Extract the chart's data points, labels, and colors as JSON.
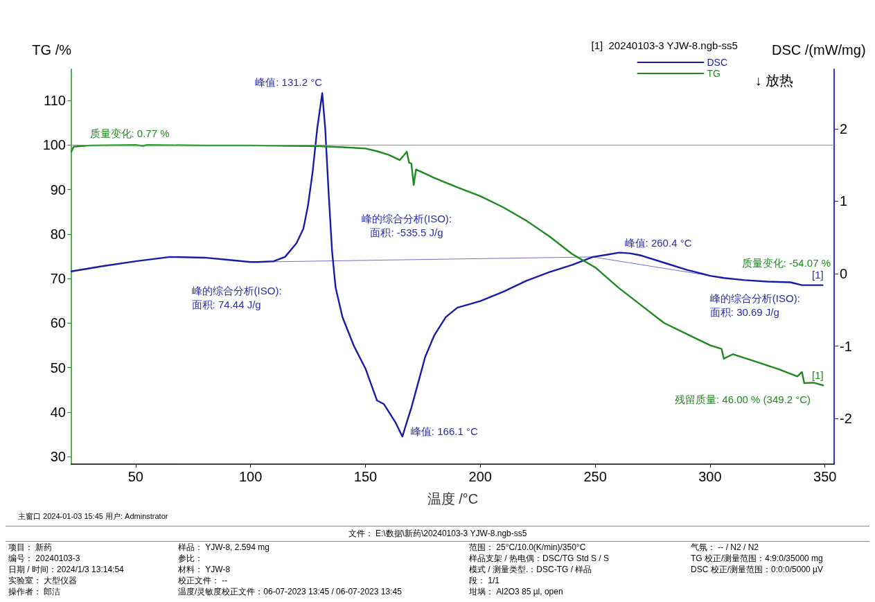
{
  "chart_data": {
    "type": "line",
    "xlabel": "温度 /°C",
    "ylabel": "TG /%",
    "y2label": "DSC /(mW/mg)",
    "legend_title": "[1]  20240103-3 YJW-8.ngb-ss5",
    "legend": "top right",
    "grid": false,
    "marker": "none",
    "line_style": "solid",
    "xlim": [
      22,
      354
    ],
    "xticks": [
      50,
      100,
      150,
      200,
      250,
      300,
      350
    ],
    "ylim": [
      28.3,
      117
    ],
    "yticks": [
      30,
      40,
      50,
      60,
      70,
      80,
      90,
      100,
      110
    ],
    "y2lim": [
      -2.63,
      2.82
    ],
    "y2ticks": [
      -2,
      -1,
      0,
      1,
      2
    ],
    "series": [
      {
        "name": "DSC",
        "color": "#1a1aa8",
        "axis": "y2",
        "x": [
          22,
          35,
          50,
          65,
          80,
          90,
          100,
          103,
          110,
          115,
          120,
          123,
          125,
          127,
          129,
          131.2,
          132.5,
          134,
          135.5,
          137,
          140,
          145,
          150,
          155,
          158,
          160,
          163,
          166.1,
          168,
          170,
          173,
          176,
          180,
          185,
          190,
          200,
          210,
          220,
          230,
          240,
          249,
          255,
          260.4,
          265,
          270,
          280,
          290,
          300,
          306,
          315,
          325,
          335,
          340,
          349
        ],
        "values": [
          0.03,
          0.1,
          0.17,
          0.23,
          0.22,
          0.19,
          0.16,
          0.16,
          0.17,
          0.23,
          0.42,
          0.62,
          0.94,
          1.4,
          2.0,
          2.49,
          2.0,
          1.1,
          0.3,
          -0.19,
          -0.6,
          -1.0,
          -1.31,
          -1.75,
          -1.8,
          -1.9,
          -2.05,
          -2.25,
          -2.05,
          -1.85,
          -1.5,
          -1.15,
          -0.85,
          -0.6,
          -0.47,
          -0.38,
          -0.25,
          -0.1,
          0.02,
          0.12,
          0.23,
          0.26,
          0.29,
          0.28,
          0.25,
          0.15,
          0.05,
          -0.03,
          -0.06,
          -0.09,
          -0.11,
          -0.12,
          -0.16,
          -0.16
        ]
      },
      {
        "name": "TG",
        "color": "#1e8a1e",
        "x": [
          22,
          23,
          30,
          50,
          53,
          55,
          80,
          100,
          130,
          140,
          150,
          155,
          160,
          165,
          168,
          169,
          170,
          171,
          172,
          175,
          180,
          190,
          200,
          210,
          220,
          230,
          240,
          250,
          260,
          270,
          280,
          290,
          300,
          305,
          306,
          310,
          320,
          330,
          338,
          340,
          341,
          345,
          349.2
        ],
        "values": [
          98.5,
          99.6,
          99.9,
          100,
          99.8,
          100,
          99.9,
          99.9,
          99.7,
          99.5,
          99.2,
          98.6,
          97.8,
          96.6,
          98.5,
          96,
          95.8,
          91,
          94.5,
          93.8,
          92.6,
          90.5,
          88.5,
          86,
          83,
          79.5,
          75.5,
          72.5,
          68,
          64,
          60,
          57.5,
          55,
          54.2,
          52,
          53,
          51.3,
          49.6,
          48,
          49,
          46.5,
          46.6,
          46
        ]
      },
      {
        "color": "#6f6fd0",
        "axis": "y2",
        "x": [
          103,
          249,
          306
        ],
        "values": [
          0.16,
          0.23,
          -0.06
        ]
      }
    ],
    "ref_lines": [
      {
        "axis": "y",
        "value": 100,
        "color": "#5cb85c"
      }
    ],
    "annotations": [
      {
        "text": "峰值: 131.2 °C",
        "x": 131.2,
        "y": 111.7
      },
      {
        "text": "质量变化: 0.77 %",
        "x": 30,
        "y": 100.5
      },
      {
        "text": "峰的综合分析(ISO):\n面积: 74.44 J/g",
        "x": 103,
        "y": 73.5
      },
      {
        "text": "峰的综合分析(ISO):\n面积: -535.5 J/g",
        "x": 180,
        "y": 74.5
      },
      {
        "text": "峰值: 260.4 °C",
        "x": 260.4,
        "y": 75.8
      },
      {
        "text": "峰的综合分析(ISO):\n面积: 30.69 J/g",
        "x": 306,
        "y": 70.6
      },
      {
        "text": "残留质量: 46.00 % (349.2 °C)",
        "x": 349.2,
        "y": 46
      },
      {
        "text": "峰值: 166.1 °C",
        "x": 166.1,
        "y": 34.8
      },
      {
        "text": "[1]",
        "x": 350,
        "y": 69
      },
      {
        "text": "[1]",
        "x": 350,
        "y": 46.5
      },
      "↓ 放热",
      "质量变化: -54.07 %",
      "主窗口   2024-01-03 15:45   用户: Adminstrator",
      "文件： E:\\数据\\新药\\20240103-3 YJW-8.ngb-ss5",
      "项目：  新药",
      "编号：  20240103-3",
      "日期 / 时间：2024/1/3 13:14:54",
      "实验室：  大型仪器",
      "操作者：  郎洁",
      "样品：  YJW-8, 2.594 mg",
      "参比：",
      "材料：  YJW-8",
      "校正文件：  --",
      "温度/灵敏度校正文件：06-07-2023 13:45 / 06-07-2023 13:45",
      "范围：  25°C/10.0(K/min)/350°C",
      "样品支架 / 热电偶：DSC/TG Std S / S",
      "模式 / 测量类型.：DSC-TG / 样品",
      "段：  1/1",
      "坩埚：  Al2O3 85 µl, open",
      "气氛：  -- / N2 / N2",
      "TG 校正/测量范围：4:9:0/35000 mg",
      "DSC 校正/测量范围：0:0:0/5000 µV"
    ]
  }
}
